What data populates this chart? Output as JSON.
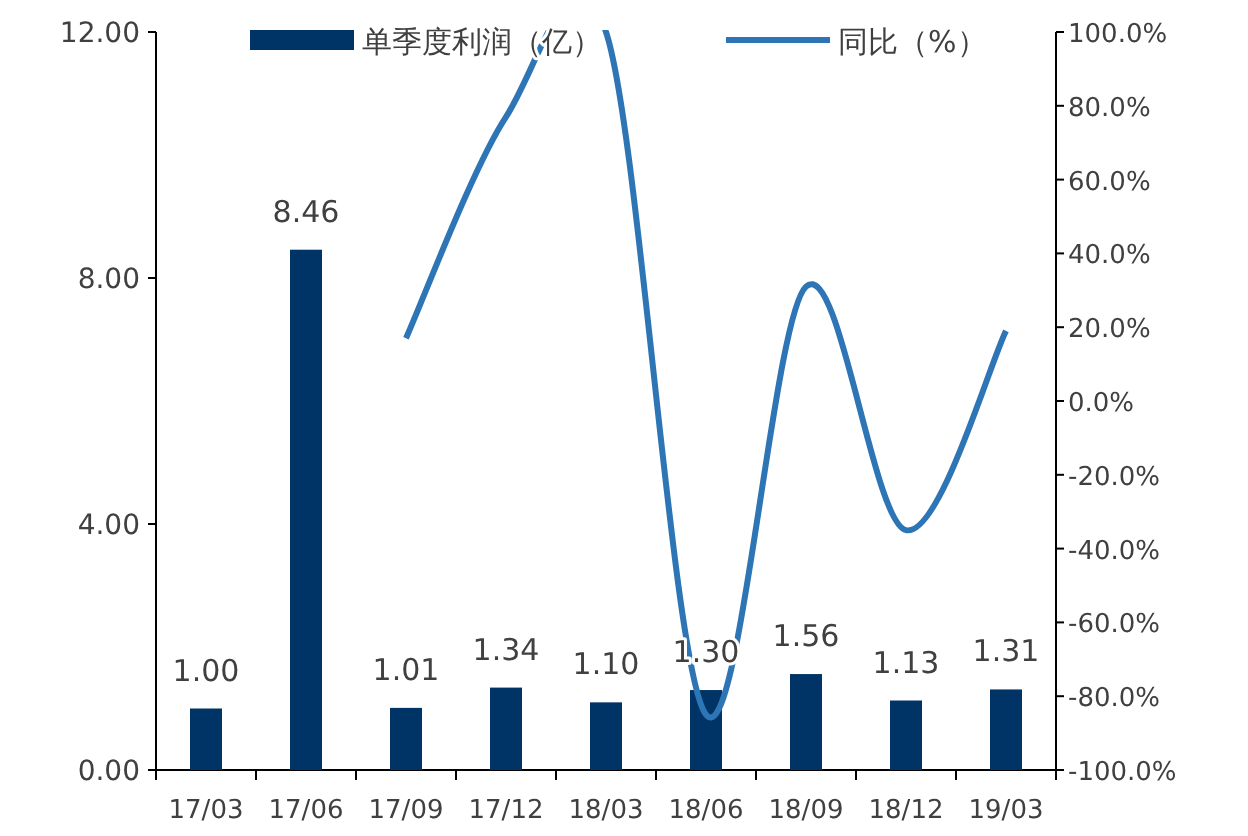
{
  "chart_data": {
    "type": "bar",
    "categories": [
      "17/03",
      "17/06",
      "17/09",
      "17/12",
      "18/03",
      "18/06",
      "18/09",
      "18/12",
      "19/03"
    ],
    "series": [
      {
        "name": "单季度利润（亿）",
        "color": "#003366",
        "values": [
          1.0,
          8.46,
          1.01,
          1.34,
          1.1,
          1.3,
          1.56,
          1.13,
          1.31
        ],
        "value_labels": [
          "1.00",
          "8.46",
          "1.01",
          "1.34",
          "1.10",
          "1.30",
          "1.56",
          "1.13",
          "1.31"
        ]
      },
      {
        "name": "同比（%）",
        "type": "line",
        "axis": "y2",
        "color": "#2e75b6",
        "values": [
          null,
          null,
          17,
          77,
          100,
          -85,
          31,
          -35,
          19
        ]
      }
    ],
    "ylim": [
      0,
      12
    ],
    "yticks": [
      {
        "value": 0,
        "label": "0.00"
      },
      {
        "value": 4,
        "label": "4.00"
      },
      {
        "value": 8,
        "label": "8.00"
      },
      {
        "value": 12,
        "label": "12.00"
      }
    ],
    "y2lim": [
      -100,
      100
    ],
    "y2ticks": [
      {
        "value": -100,
        "label": "-100.0%"
      },
      {
        "value": -80,
        "label": "-80.0%"
      },
      {
        "value": -60,
        "label": "-60.0%"
      },
      {
        "value": -40,
        "label": "-40.0%"
      },
      {
        "value": -20,
        "label": "-20.0%"
      },
      {
        "value": 0,
        "label": "0.0%"
      },
      {
        "value": 20,
        "label": "20.0%"
      },
      {
        "value": 40,
        "label": "40.0%"
      },
      {
        "value": 60,
        "label": "60.0%"
      },
      {
        "value": 80,
        "label": "80.0%"
      },
      {
        "value": 100,
        "label": "100.0%"
      }
    ],
    "legend": "top"
  }
}
